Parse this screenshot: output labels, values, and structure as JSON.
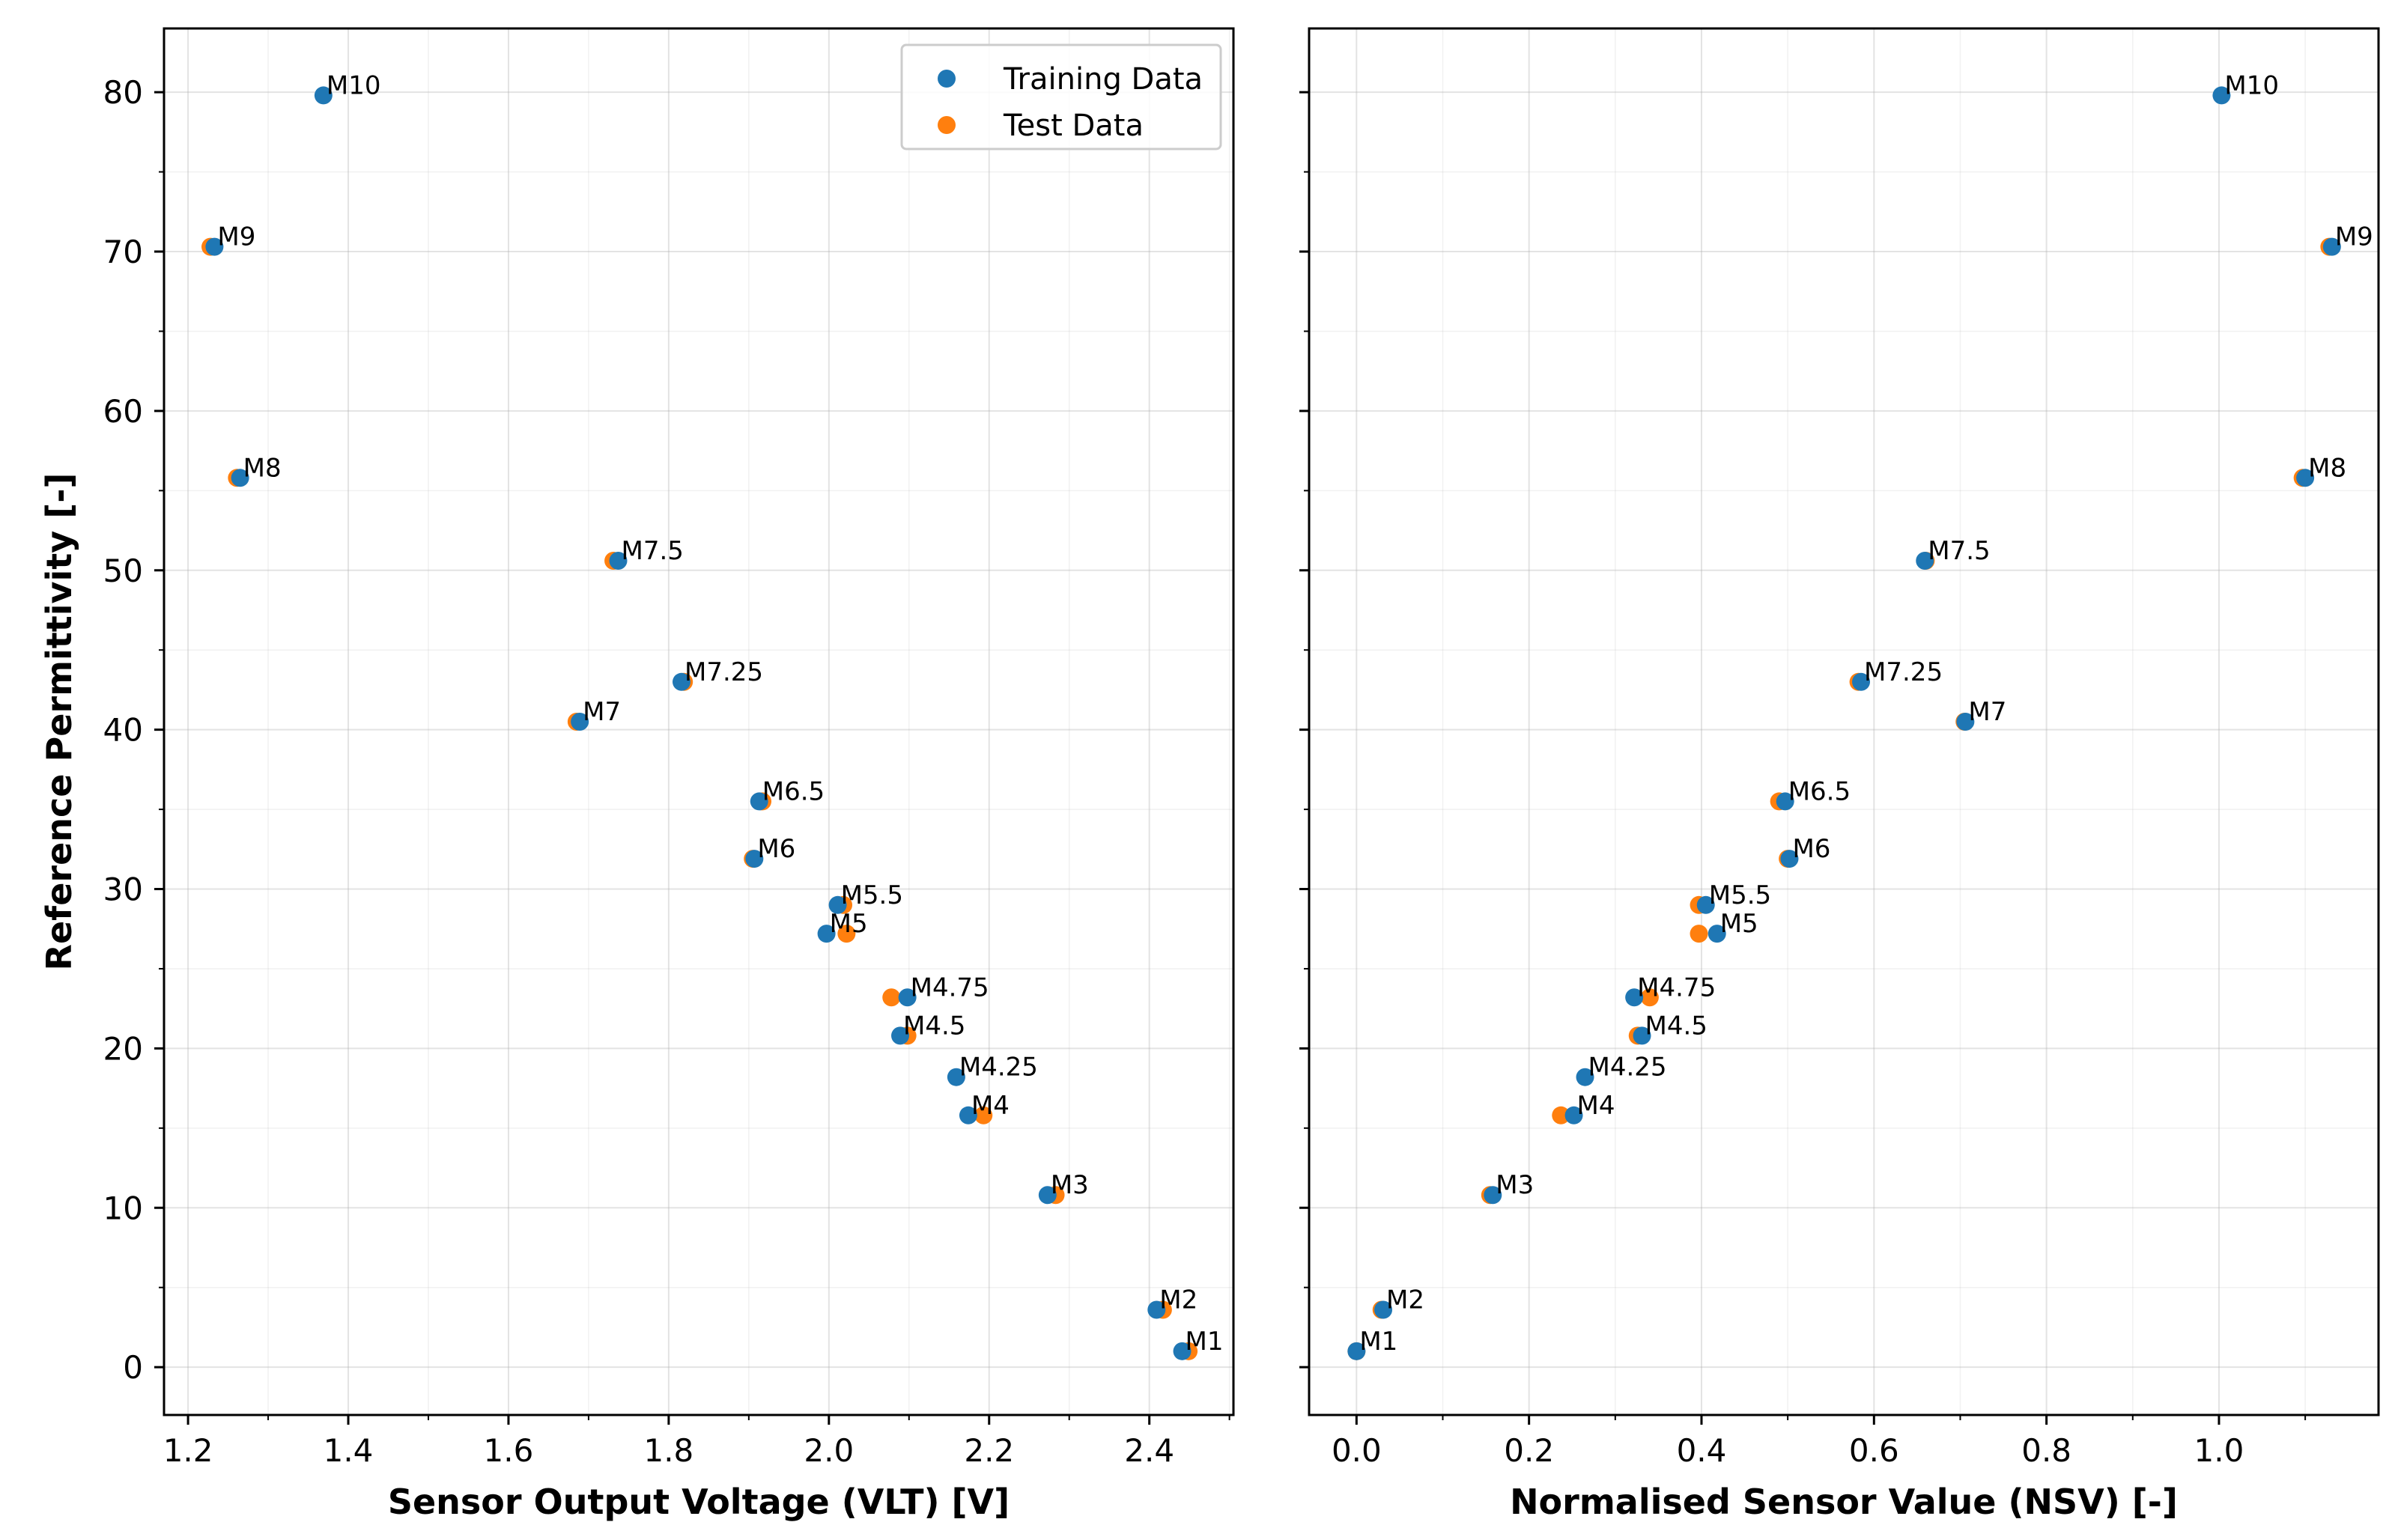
{
  "chart_data": [
    {
      "type": "scatter",
      "xlabel": "Sensor Output Voltage (VLT) [V]",
      "ylabel": "Reference Permittivity [-]",
      "xlim": [
        1.17,
        2.505
      ],
      "ylim": [
        -3,
        84
      ],
      "xticks": [
        "1.2",
        "1.4",
        "1.6",
        "1.8",
        "2.0",
        "2.2",
        "2.4"
      ],
      "yticks": [
        "0",
        "10",
        "20",
        "30",
        "40",
        "50",
        "60",
        "70",
        "80"
      ],
      "legend": {
        "location": "top-right",
        "entries": [
          {
            "name": "Training Data",
            "color": "#1f77b4"
          },
          {
            "name": "Test Data",
            "color": "#ff7f0e"
          }
        ]
      },
      "series": [
        {
          "name": "Test Data",
          "color": "#ff7f0e",
          "points": [
            {
              "x": 2.449,
              "y": 1.0
            },
            {
              "x": 2.417,
              "y": 3.6
            },
            {
              "x": 2.283,
              "y": 10.8
            },
            {
              "x": 2.193,
              "y": 15.8
            },
            {
              "x": 2.078,
              "y": 23.2
            },
            {
              "x": 2.098,
              "y": 20.8
            },
            {
              "x": 2.022,
              "y": 27.2
            },
            {
              "x": 2.018,
              "y": 29.0
            },
            {
              "x": 1.905,
              "y": 31.9
            },
            {
              "x": 1.917,
              "y": 35.5
            },
            {
              "x": 1.685,
              "y": 40.5
            },
            {
              "x": 1.819,
              "y": 43.0
            },
            {
              "x": 1.731,
              "y": 50.6
            },
            {
              "x": 1.261,
              "y": 55.8
            },
            {
              "x": 1.228,
              "y": 70.3
            }
          ]
        },
        {
          "name": "Training Data",
          "color": "#1f77b4",
          "points": [
            {
              "x": 2.441,
              "y": 1.0,
              "label": "M1"
            },
            {
              "x": 2.409,
              "y": 3.6,
              "label": "M2"
            },
            {
              "x": 2.273,
              "y": 10.8,
              "label": "M3"
            },
            {
              "x": 2.174,
              "y": 15.8,
              "label": "M4"
            },
            {
              "x": 2.159,
              "y": 18.2,
              "label": "M4.25"
            },
            {
              "x": 2.089,
              "y": 20.8,
              "label": "M4.5"
            },
            {
              "x": 2.098,
              "y": 23.2,
              "label": "M4.75"
            },
            {
              "x": 1.997,
              "y": 27.2,
              "label": "M5"
            },
            {
              "x": 2.011,
              "y": 29.0,
              "label": "M5.5"
            },
            {
              "x": 1.907,
              "y": 31.9,
              "label": "M6"
            },
            {
              "x": 1.913,
              "y": 35.5,
              "label": "M6.5"
            },
            {
              "x": 1.689,
              "y": 40.5,
              "label": "M7"
            },
            {
              "x": 1.816,
              "y": 43.0,
              "label": "M7.25"
            },
            {
              "x": 1.737,
              "y": 50.6,
              "label": "M7.5"
            },
            {
              "x": 1.265,
              "y": 55.8,
              "label": "M8"
            },
            {
              "x": 1.233,
              "y": 70.3,
              "label": "M9"
            },
            {
              "x": 1.369,
              "y": 79.8,
              "label": "M10"
            }
          ]
        }
      ]
    },
    {
      "type": "scatter",
      "xlabel": "Normalised Sensor Value (NSV) [-]",
      "ylabel": "",
      "xlim": [
        -0.055,
        1.185
      ],
      "ylim": [
        -3,
        84
      ],
      "xticks": [
        "0.0",
        "0.2",
        "0.4",
        "0.6",
        "0.8",
        "1.0"
      ],
      "series": [
        {
          "name": "Test Data",
          "color": "#ff7f0e",
          "points": [
            {
              "x": 0.0,
              "y": 1.0
            },
            {
              "x": 0.029,
              "y": 3.6
            },
            {
              "x": 0.155,
              "y": 10.8
            },
            {
              "x": 0.237,
              "y": 15.8
            },
            {
              "x": 0.34,
              "y": 23.2
            },
            {
              "x": 0.326,
              "y": 20.8
            },
            {
              "x": 0.397,
              "y": 27.2
            },
            {
              "x": 0.397,
              "y": 29.0
            },
            {
              "x": 0.5,
              "y": 31.9
            },
            {
              "x": 0.49,
              "y": 35.5
            },
            {
              "x": 0.705,
              "y": 40.5
            },
            {
              "x": 0.582,
              "y": 43.0
            },
            {
              "x": 0.66,
              "y": 50.6
            },
            {
              "x": 1.097,
              "y": 55.8
            },
            {
              "x": 1.128,
              "y": 70.3
            }
          ]
        },
        {
          "name": "Training Data",
          "color": "#1f77b4",
          "points": [
            {
              "x": 0.0,
              "y": 1.0,
              "label": "M1"
            },
            {
              "x": 0.031,
              "y": 3.6,
              "label": "M2"
            },
            {
              "x": 0.158,
              "y": 10.8,
              "label": "M3"
            },
            {
              "x": 0.252,
              "y": 15.8,
              "label": "M4"
            },
            {
              "x": 0.265,
              "y": 18.2,
              "label": "M4.25"
            },
            {
              "x": 0.331,
              "y": 20.8,
              "label": "M4.5"
            },
            {
              "x": 0.322,
              "y": 23.2,
              "label": "M4.75"
            },
            {
              "x": 0.418,
              "y": 27.2,
              "label": "M5"
            },
            {
              "x": 0.405,
              "y": 29.0,
              "label": "M5.5"
            },
            {
              "x": 0.502,
              "y": 31.9,
              "label": "M6"
            },
            {
              "x": 0.497,
              "y": 35.5,
              "label": "M6.5"
            },
            {
              "x": 0.706,
              "y": 40.5,
              "label": "M7"
            },
            {
              "x": 0.585,
              "y": 43.0,
              "label": "M7.25"
            },
            {
              "x": 0.659,
              "y": 50.6,
              "label": "M7.5"
            },
            {
              "x": 1.1,
              "y": 55.8,
              "label": "M8"
            },
            {
              "x": 1.131,
              "y": 70.3,
              "label": "M9"
            },
            {
              "x": 1.003,
              "y": 79.8,
              "label": "M10"
            }
          ]
        }
      ]
    }
  ]
}
